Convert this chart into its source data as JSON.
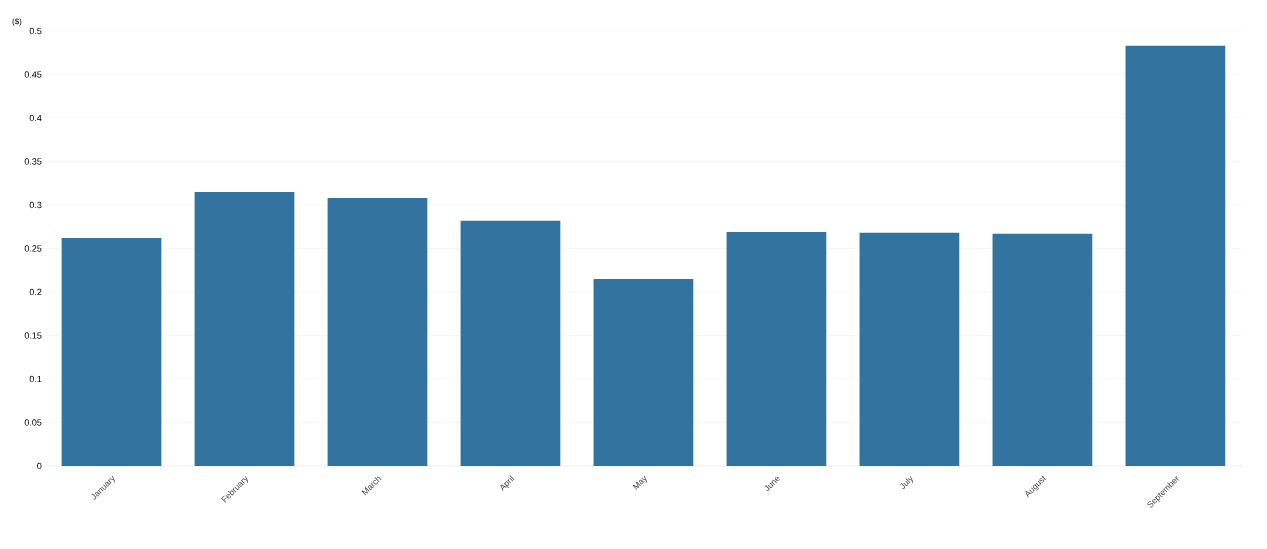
{
  "chart_data": {
    "type": "bar",
    "ylabel": "($)",
    "categories": [
      "January",
      "February",
      "March",
      "April",
      "May",
      "June",
      "July",
      "August",
      "September"
    ],
    "values": [
      0.262,
      0.315,
      0.308,
      0.282,
      0.215,
      0.269,
      0.268,
      0.267,
      0.483
    ],
    "color": "#33739f",
    "ylim": [
      0,
      0.5
    ],
    "yticks": [
      0,
      0.05,
      0.1,
      0.15,
      0.2,
      0.25,
      0.3,
      0.35,
      0.4,
      0.45,
      0.5
    ],
    "grid": "y"
  }
}
